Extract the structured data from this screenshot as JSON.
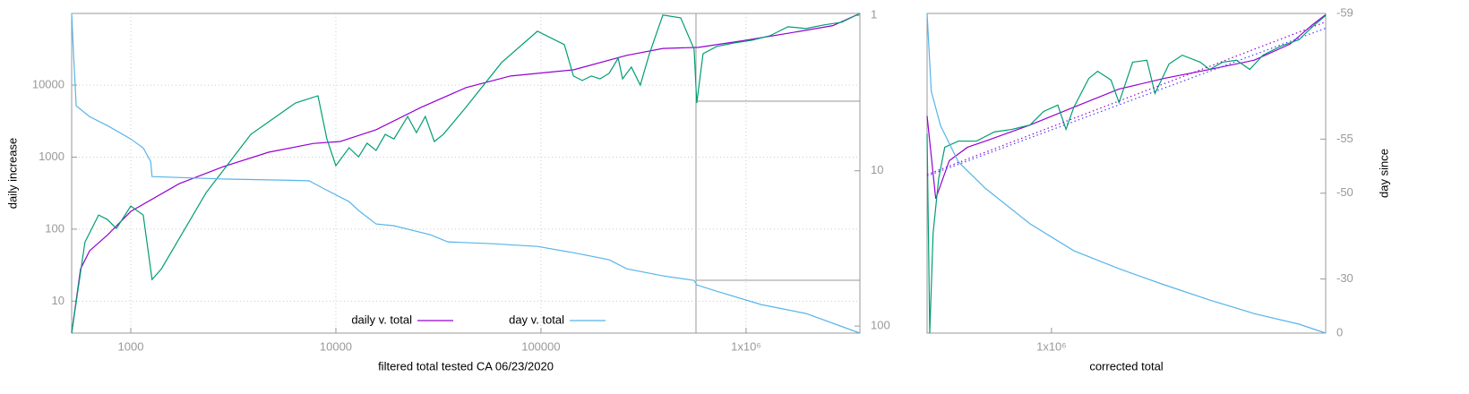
{
  "chart_data": [
    {
      "type": "line",
      "xlabel": "filtered total tested CA 06/23/2020",
      "ylabel": "daily increase",
      "xlog": true,
      "ylog": true,
      "y2log": true,
      "grid": true,
      "legend": "bottom-center",
      "xlim": [
        515,
        3590000
      ],
      "xticks": [
        1000,
        10000,
        100000,
        {
          "value": 1000000,
          "label": "1x10⁶"
        }
      ],
      "ylim": [
        3.6,
        99000
      ],
      "yticks": [
        10,
        100,
        1000,
        10000
      ],
      "y2lim": [
        111,
        0.97
      ],
      "y2ticks": [
        1,
        10,
        100
      ],
      "series": [
        {
          "name": "daily v. total",
          "color": "#9400d3",
          "x": [
            515,
            569,
            630,
            770,
            1000,
            1720,
            2840,
            4700,
            7780,
            10500,
            15700,
            26000,
            43000,
            71100,
            144000,
            262000,
            393000,
            587000,
            971000,
            1600000,
            2650000,
            3590000
          ],
          "values": [
            3.6,
            28,
            50,
            83,
            176,
            427,
            740,
            1170,
            1550,
            1650,
            2400,
            4900,
            9200,
            13400,
            16300,
            25900,
            32300,
            33500,
            41500,
            52400,
            67000,
            99000
          ]
        },
        {
          "color": "#009e73",
          "x": [
            515,
            598,
            697,
            770,
            851,
            1000,
            1150,
            1270,
            1410,
            2330,
            3850,
            6350,
            8180,
            9040,
            10000,
            11600,
            12900,
            14200,
            15700,
            17400,
            19200,
            22400,
            24700,
            27300,
            30200,
            33400,
            43000,
            64300,
            96100,
            130000,
            144000,
            159000,
            176000,
            194000,
            215000,
            238000,
            250000,
            276000,
            305000,
            338000,
            393000,
            480000,
            558000,
            575000,
            617000,
            718000,
            878000,
            1070000,
            1310000,
            1600000,
            1960000,
            2400000,
            2930000,
            3590000
          ],
          "values": [
            3.6,
            66,
            157,
            136,
            102,
            209,
            157,
            20,
            28,
            321,
            2070,
            5650,
            7110,
            1790,
            759,
            1350,
            1010,
            1560,
            1240,
            2070,
            1790,
            3670,
            2190,
            3670,
            1650,
            2070,
            4900,
            20600,
            56000,
            36500,
            13400,
            11600,
            13400,
            12200,
            14600,
            23700,
            12200,
            17800,
            10000,
            27300,
            94000,
            86100,
            31600,
            5650,
            27300,
            34400,
            38600,
            42100,
            48600,
            64700,
            61100,
            68600,
            74700,
            99000
          ]
        },
        {
          "name": "day v. total",
          "color": "#56b4e9",
          "axis": "y2",
          "x": [
            515,
            526,
            542,
            630,
            770,
            1000,
            1150,
            1250,
            1270,
            2840,
            5750,
            7400,
            8600,
            11600,
            12900,
            15700,
            19200,
            28800,
            35200,
            58100,
            96100,
            144000,
            215000,
            262000,
            393000,
            558000,
            575000,
            718000,
            1190000,
            1960000,
            3590000
          ],
          "values": [
            0.97,
            1.77,
            3.82,
            4.48,
            5.12,
            6.24,
            7.13,
            8.7,
            10.9,
            11.3,
            11.5,
            11.6,
            12.9,
            15.8,
            18.0,
            22.0,
            22.6,
            25.8,
            28.7,
            29.5,
            30.7,
            33.7,
            37.4,
            42.8,
            47.5,
            50.8,
            54.3,
            59.6,
            72.8,
            83.0,
            111
          ]
        }
      ]
    },
    {
      "type": "line",
      "xlabel": "corrected total",
      "y2label": "day since",
      "xlog": true,
      "ylog": true,
      "y2log": true,
      "y2log_offset": 60,
      "grid": false,
      "xlim": [
        560000,
        3590000
      ],
      "xticks": [
        {
          "value": 1000000,
          "label": "1x10⁶"
        }
      ],
      "ylim": [
        5900,
        99000
      ],
      "y2lim": [
        0,
        -59
      ],
      "y2ticks": [
        -59,
        -55,
        -50,
        -30,
        0
      ],
      "series": [
        {
          "color": "#9400d3",
          "x": [
            560000,
            583000,
            621000,
            676000,
            735000,
            905000,
            1110000,
            1370000,
            1690000,
            2090000,
            2570000,
            3040000,
            3380000,
            3590000
          ],
          "values": [
            40100,
            19300,
            27000,
            30400,
            32100,
            37000,
            43300,
            50800,
            55800,
            60400,
            65500,
            75500,
            89800,
            98000
          ]
        },
        {
          "color": "#009e73",
          "x": [
            560000,
            567000,
            576000,
            591000,
            608000,
            648000,
            705000,
            766000,
            832000,
            905000,
            964000,
            1030000,
            1070000,
            1110000,
            1190000,
            1240000,
            1320000,
            1370000,
            1460000,
            1560000,
            1620000,
            1730000,
            1840000,
            2000000,
            2090000,
            2220000,
            2370000,
            2520000,
            2680000,
            2920000,
            3170000,
            3380000,
            3590000
          ],
          "values": [
            34200,
            5900,
            14300,
            23000,
            30400,
            32100,
            32100,
            34800,
            35600,
            37000,
            41700,
            44100,
            35600,
            43300,
            55800,
            59400,
            55000,
            45100,
            64400,
            65500,
            48900,
            63400,
            68500,
            64400,
            60400,
            64400,
            65500,
            60400,
            68500,
            74300,
            78500,
            88300,
            97200
          ]
        },
        {
          "color": "#56b4e9",
          "axis": "y2",
          "x": [
            560000,
            571000,
            596000,
            648000,
            735000,
            905000,
            1110000,
            1370000,
            1690000,
            2090000,
            2570000,
            3170000,
            3590000
          ],
          "values": [
            -59.0,
            -57.3,
            -55.8,
            -53.3,
            -50.6,
            -45.2,
            -39.1,
            -33.7,
            -27.7,
            -20.7,
            -13.3,
            -6.5,
            0
          ]
        },
        {
          "color": "#9400d3",
          "dash": true,
          "x": [
            560000,
            3590000
          ],
          "values": [
            23900,
            91900
          ]
        },
        {
          "color": "#4040ff",
          "dash": true,
          "x": [
            560000,
            3590000
          ],
          "values": [
            23600,
            86900
          ]
        }
      ]
    }
  ]
}
